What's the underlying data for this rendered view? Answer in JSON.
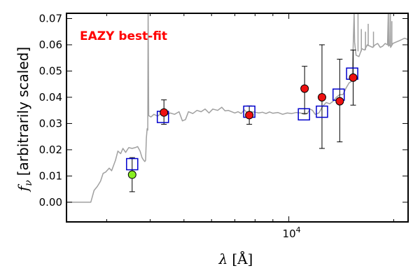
{
  "chart_data": {
    "type": "scatter",
    "annotation": "EAZY best-fit",
    "annotation_color": "#ff0000",
    "xlabel_symbol": "λ",
    "xlabel_unit": "[Å]",
    "ylabel_symbol": "f",
    "ylabel_sub": "ν",
    "ylabel_text": "[arbitrarily scaled]",
    "x_scale": "log",
    "xlim": [
      2300,
      22000
    ],
    "ylim": [
      -0.0075,
      0.072
    ],
    "x_major_tick_label": {
      "base": "10",
      "exp": "4",
      "value": 10000
    },
    "y_ticks": [
      0.0,
      0.01,
      0.02,
      0.03,
      0.04,
      0.05,
      0.06,
      0.07
    ],
    "y_tick_labels": [
      "0.00",
      "0.01",
      "0.02",
      "0.03",
      "0.04",
      "0.05",
      "0.06",
      "0.07"
    ],
    "grid": false,
    "colors": {
      "template": "#a0a0a0",
      "model_box": "#0000cc",
      "detection": "#ee1111",
      "low_snr": "#88ee22",
      "errorbar": "#000000"
    },
    "template_spectrum": [
      [
        2300,
        0.0
      ],
      [
        2480,
        0.0
      ],
      [
        2700,
        0.0
      ],
      [
        2760,
        0.0045
      ],
      [
        2820,
        0.006
      ],
      [
        2880,
        0.008
      ],
      [
        2930,
        0.011
      ],
      [
        2980,
        0.0115
      ],
      [
        3050,
        0.013
      ],
      [
        3100,
        0.012
      ],
      [
        3180,
        0.016
      ],
      [
        3230,
        0.0195
      ],
      [
        3290,
        0.0185
      ],
      [
        3340,
        0.0205
      ],
      [
        3400,
        0.019
      ],
      [
        3470,
        0.0208
      ],
      [
        3550,
        0.0205
      ],
      [
        3620,
        0.0208
      ],
      [
        3680,
        0.0212
      ],
      [
        3740,
        0.0195
      ],
      [
        3790,
        0.017
      ],
      [
        3830,
        0.016
      ],
      [
        3860,
        0.0155
      ],
      [
        3880,
        0.016
      ],
      [
        3900,
        0.0245
      ],
      [
        3920,
        0.028
      ],
      [
        3935,
        0.0275
      ],
      [
        3945,
        0.073
      ],
      [
        3960,
        0.033
      ],
      [
        4020,
        0.0325
      ],
      [
        4100,
        0.0335
      ],
      [
        4200,
        0.0328
      ],
      [
        4300,
        0.0338
      ],
      [
        4420,
        0.033
      ],
      [
        4560,
        0.034
      ],
      [
        4700,
        0.0335
      ],
      [
        4840,
        0.0345
      ],
      [
        4950,
        0.031
      ],
      [
        5050,
        0.0315
      ],
      [
        5150,
        0.0345
      ],
      [
        5300,
        0.0338
      ],
      [
        5450,
        0.035
      ],
      [
        5600,
        0.0345
      ],
      [
        5750,
        0.0355
      ],
      [
        5900,
        0.034
      ],
      [
        6050,
        0.0355
      ],
      [
        6250,
        0.035
      ],
      [
        6420,
        0.0362
      ],
      [
        6560,
        0.0348
      ],
      [
        6700,
        0.035
      ],
      [
        6850,
        0.0345
      ],
      [
        7000,
        0.034
      ],
      [
        7150,
        0.0345
      ],
      [
        7300,
        0.0338
      ],
      [
        7450,
        0.0352
      ],
      [
        7600,
        0.034
      ],
      [
        7800,
        0.0345
      ],
      [
        8000,
        0.0343
      ],
      [
        8200,
        0.034
      ],
      [
        8400,
        0.0343
      ],
      [
        8600,
        0.0338
      ],
      [
        8800,
        0.0344
      ],
      [
        9000,
        0.0339
      ],
      [
        9300,
        0.0342
      ],
      [
        9600,
        0.0335
      ],
      [
        9900,
        0.034
      ],
      [
        10200,
        0.0338
      ],
      [
        10500,
        0.0342
      ],
      [
        10800,
        0.034
      ],
      [
        11100,
        0.0335
      ],
      [
        11300,
        0.0338
      ],
      [
        11500,
        0.0355
      ],
      [
        11700,
        0.035
      ],
      [
        11900,
        0.0335
      ],
      [
        12200,
        0.034
      ],
      [
        12500,
        0.0365
      ],
      [
        12800,
        0.038
      ],
      [
        13100,
        0.0375
      ],
      [
        13400,
        0.0385
      ],
      [
        13700,
        0.04
      ],
      [
        14000,
        0.041
      ],
      [
        14300,
        0.041
      ],
      [
        14600,
        0.0435
      ],
      [
        14900,
        0.0455
      ],
      [
        15200,
        0.0462
      ],
      [
        15400,
        0.072
      ],
      [
        15450,
        0.061
      ],
      [
        15600,
        0.056
      ],
      [
        15900,
        0.0555
      ],
      [
        16200,
        0.0585
      ],
      [
        16500,
        0.058
      ],
      [
        16800,
        0.06
      ],
      [
        17100,
        0.0595
      ],
      [
        17400,
        0.059
      ],
      [
        17700,
        0.06
      ],
      [
        18000,
        0.0605
      ],
      [
        18300,
        0.059
      ],
      [
        18600,
        0.0595
      ],
      [
        18900,
        0.0605
      ],
      [
        19200,
        0.06
      ],
      [
        19300,
        0.072
      ],
      [
        19350,
        0.0595
      ],
      [
        19500,
        0.06
      ],
      [
        19550,
        0.072
      ],
      [
        19600,
        0.059
      ],
      [
        19900,
        0.0605
      ],
      [
        20300,
        0.061
      ],
      [
        20700,
        0.0615
      ],
      [
        21100,
        0.062
      ],
      [
        21500,
        0.0625
      ],
      [
        22000,
        0.062
      ]
    ],
    "template_spikes": [
      [
        15800,
        0.0575,
        0.072
      ],
      [
        16150,
        0.0575,
        0.066
      ],
      [
        16600,
        0.058,
        0.065
      ],
      [
        16900,
        0.0595,
        0.068
      ],
      [
        17500,
        0.059,
        0.065
      ],
      [
        19320,
        0.0595,
        0.072
      ],
      [
        19560,
        0.0595,
        0.072
      ],
      [
        19760,
        0.06,
        0.069
      ]
    ],
    "model_fluxes": [
      {
        "x": 3550,
        "y": 0.0145
      },
      {
        "x": 4350,
        "y": 0.0325
      },
      {
        "x": 7700,
        "y": 0.0345
      },
      {
        "x": 11050,
        "y": 0.0335
      },
      {
        "x": 12450,
        "y": 0.0345
      },
      {
        "x": 13900,
        "y": 0.041
      },
      {
        "x": 15200,
        "y": 0.049
      }
    ],
    "observed": [
      {
        "x": 3550,
        "y": 0.0105,
        "yerr_lo": 0.0065,
        "yerr_hi": 0.0065,
        "kind": "low_snr"
      },
      {
        "x": 4380,
        "y": 0.0342,
        "yerr_lo": 0.0045,
        "yerr_hi": 0.0048,
        "kind": "detection"
      },
      {
        "x": 7700,
        "y": 0.0332,
        "yerr_lo": 0.0035,
        "yerr_hi": 0.0035,
        "kind": "detection"
      },
      {
        "x": 11100,
        "y": 0.0433,
        "yerr_lo": 0.0095,
        "yerr_hi": 0.0085,
        "kind": "detection"
      },
      {
        "x": 12450,
        "y": 0.04,
        "yerr_lo": 0.0195,
        "yerr_hi": 0.02,
        "kind": "detection"
      },
      {
        "x": 14000,
        "y": 0.0385,
        "yerr_lo": 0.0155,
        "yerr_hi": 0.016,
        "kind": "detection"
      },
      {
        "x": 15300,
        "y": 0.0475,
        "yerr_lo": 0.0105,
        "yerr_hi": 0.0105,
        "kind": "detection"
      }
    ]
  }
}
